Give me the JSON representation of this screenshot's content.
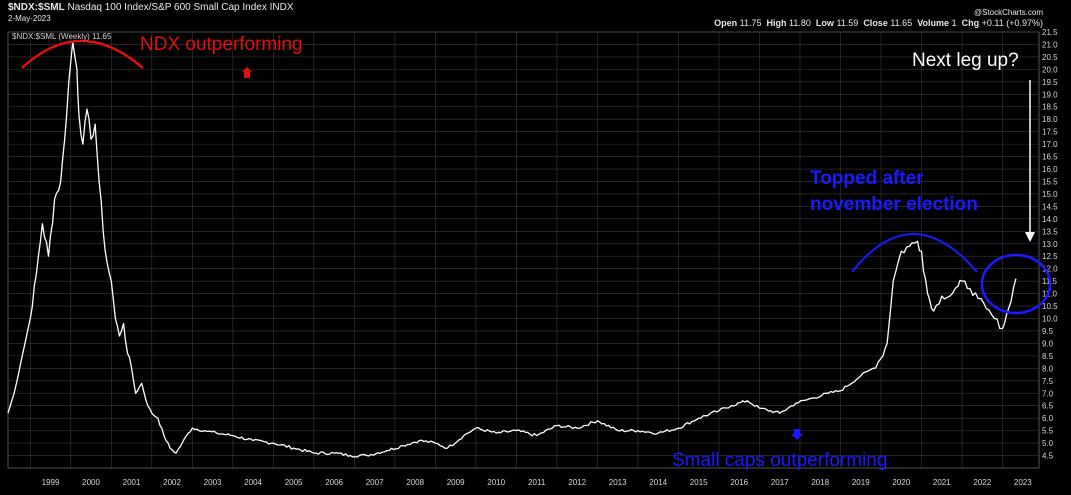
{
  "header": {
    "symbol": "$NDX:$SML",
    "description": "Nasdaq 100 Index/S&P 600 Small Cap Index",
    "exchange": "INDX",
    "date": "2-May-2023",
    "source": "@StockCharts.com",
    "legend": "$NDX:$SML (Weekly) 11.65",
    "quote": {
      "open_label": "Open",
      "open": "11.75",
      "high_label": "High",
      "high": "11.80",
      "low_label": "Low",
      "low": "11.59",
      "close_label": "Close",
      "close": "11.65",
      "volume_label": "Volume",
      "volume": "1",
      "chg_label": "Chg",
      "chg": "+0.11 (+0.97%)"
    }
  },
  "annotations": {
    "ndx": "NDX outperforming",
    "small": "Small caps outperforming",
    "topped_1": "Topped after",
    "topped_2": "november election",
    "next_leg": "Next leg up?"
  },
  "colors": {
    "line": "#ffffff",
    "grid": "#3a3a3a",
    "red": "#e01010",
    "blue": "#1a1aff",
    "background": "#000000"
  },
  "chart_data": {
    "type": "line",
    "title": "$NDX:$SML",
    "ylim": [
      4.0,
      21.5
    ],
    "xlim": [
      1998.45,
      2023.9
    ],
    "x_ticks": [
      "1999",
      "2000",
      "2001",
      "2002",
      "2003",
      "2004",
      "2005",
      "2006",
      "2007",
      "2008",
      "2009",
      "2010",
      "2011",
      "2012",
      "2013",
      "2014",
      "2015",
      "2016",
      "2017",
      "2018",
      "2019",
      "2020",
      "2021",
      "2022",
      "2023"
    ],
    "y_ticks": [
      "4.5",
      "5.0",
      "5.5",
      "6.0",
      "6.5",
      "7.0",
      "7.5",
      "8.0",
      "8.5",
      "9.0",
      "9.5",
      "10.0",
      "10.5",
      "11.0",
      "11.5",
      "12.0",
      "12.5",
      "13.0",
      "13.5",
      "14.0",
      "14.5",
      "15.0",
      "15.5",
      "16.0",
      "16.5",
      "17.0",
      "17.5",
      "18.0",
      "18.5",
      "19.0",
      "19.5",
      "20.0",
      "20.5",
      "21.0",
      "21.5"
    ],
    "grid": true,
    "series": [
      {
        "name": "$NDX:$SML (Weekly)",
        "x": [
          1998.45,
          1998.6,
          1998.8,
          1999.0,
          1999.15,
          1999.3,
          1999.45,
          1999.6,
          1999.75,
          1999.85,
          1999.95,
          2000.05,
          2000.15,
          2000.2,
          2000.3,
          2000.4,
          2000.5,
          2000.6,
          2000.7,
          2000.8,
          2000.9,
          2001.0,
          2001.1,
          2001.2,
          2001.3,
          2001.4,
          2001.5,
          2001.6,
          2001.75,
          2001.9,
          2002.0,
          2002.15,
          2002.3,
          2002.45,
          2002.6,
          2002.75,
          2002.9,
          2003.0,
          2003.3,
          2003.6,
          2004.0,
          2004.5,
          2005.0,
          2005.5,
          2006.0,
          2006.5,
          2006.9,
          2007.3,
          2007.8,
          2008.2,
          2008.6,
          2009.0,
          2009.3,
          2009.7,
          2010.0,
          2010.5,
          2011.0,
          2011.5,
          2012.0,
          2012.5,
          2013.0,
          2013.5,
          2014.0,
          2014.5,
          2015.0,
          2015.5,
          2016.0,
          2016.3,
          2016.7,
          2017.0,
          2017.5,
          2017.9,
          2018.3,
          2018.7,
          2019.0,
          2019.5,
          2019.8,
          2020.0,
          2020.15,
          2020.3,
          2020.5,
          2020.7,
          2020.9,
          2021.0,
          2021.15,
          2021.3,
          2021.5,
          2021.7,
          2021.9,
          2022.0,
          2022.2,
          2022.4,
          2022.6,
          2022.8,
          2023.0,
          2023.15,
          2023.33
        ],
        "y": [
          6.2,
          7.0,
          8.5,
          10.0,
          11.8,
          13.8,
          12.5,
          14.8,
          15.5,
          17.2,
          19.5,
          21.1,
          20.0,
          18.2,
          17.0,
          18.4,
          17.2,
          17.8,
          15.5,
          13.5,
          12.2,
          11.5,
          10.0,
          9.3,
          9.8,
          8.6,
          8.0,
          7.0,
          7.4,
          6.5,
          6.2,
          6.0,
          5.3,
          4.8,
          4.6,
          5.0,
          5.4,
          5.6,
          5.5,
          5.4,
          5.3,
          5.1,
          5.0,
          4.8,
          4.6,
          4.6,
          4.5,
          4.5,
          4.7,
          4.9,
          5.1,
          5.0,
          4.8,
          5.3,
          5.6,
          5.4,
          5.5,
          5.3,
          5.7,
          5.6,
          5.9,
          5.5,
          5.5,
          5.4,
          5.6,
          6.0,
          6.3,
          6.5,
          6.7,
          6.4,
          6.2,
          6.6,
          6.8,
          7.0,
          7.1,
          7.7,
          8.0,
          8.4,
          9.0,
          11.5,
          12.7,
          12.9,
          13.1,
          12.7,
          11.0,
          10.3,
          10.9,
          10.9,
          11.3,
          11.5,
          11.2,
          10.8,
          10.4,
          10.0,
          9.6,
          10.4,
          11.6
        ]
      }
    ]
  }
}
